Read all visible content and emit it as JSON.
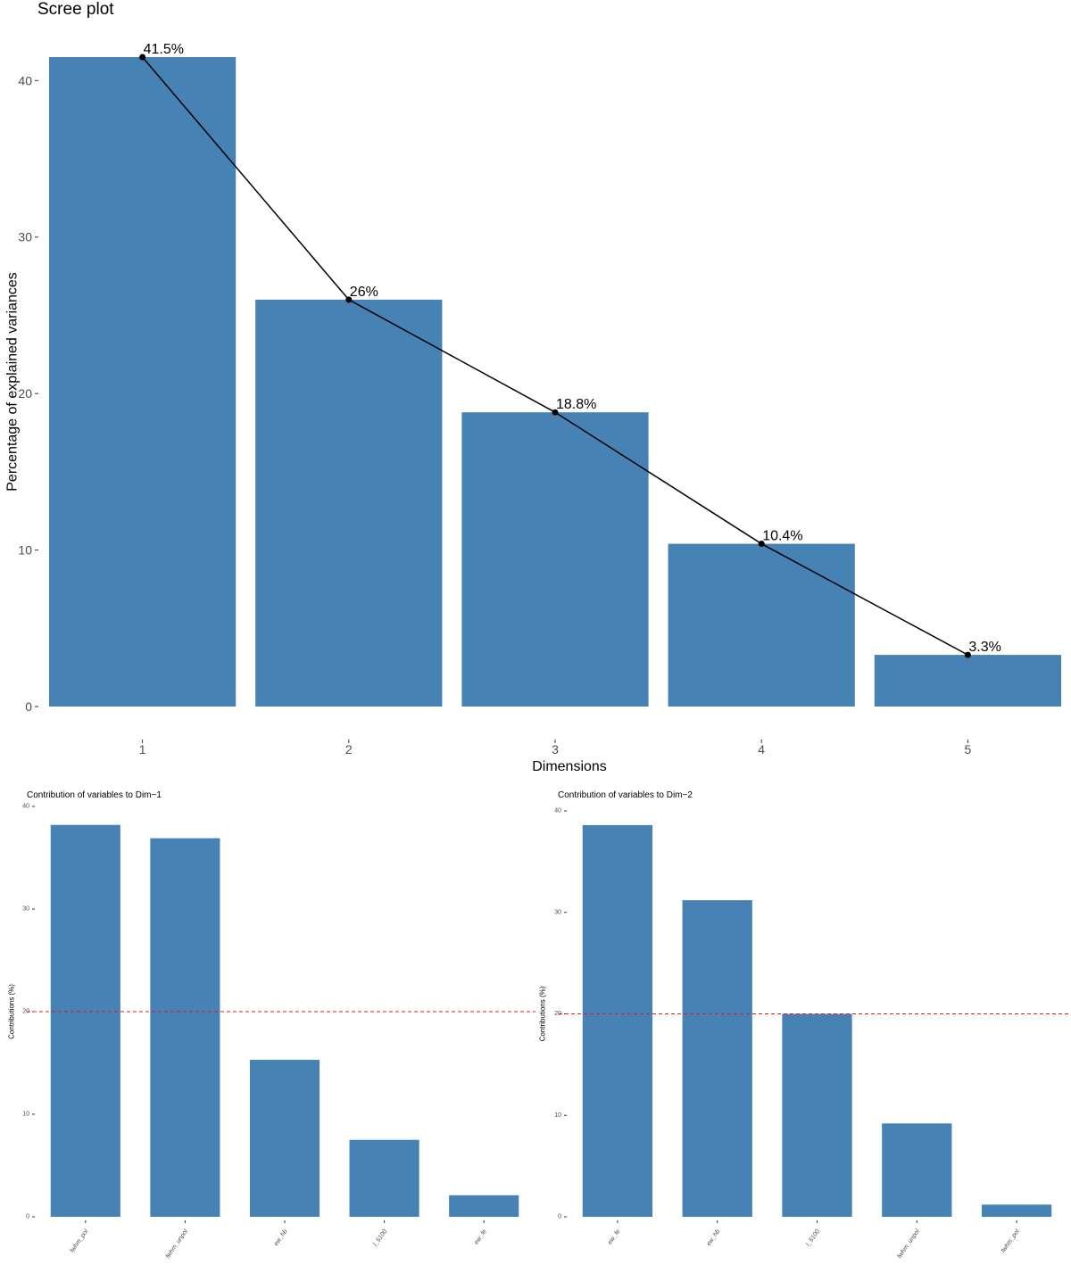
{
  "colors": {
    "bar": "#4682b4",
    "line": "#000000",
    "reference": "#e41a1c",
    "tick": "#4d4d4d",
    "background": "#ffffff"
  },
  "chart_data": [
    {
      "id": "scree",
      "type": "bar",
      "title": "Scree plot",
      "xlabel": "Dimensions",
      "ylabel": "Percentage of explained variances",
      "categories": [
        "1",
        "2",
        "3",
        "4",
        "5"
      ],
      "values": [
        41.5,
        26.0,
        18.8,
        10.4,
        3.3
      ],
      "data_labels": [
        "41.5%",
        "26%",
        "18.8%",
        "10.4%",
        "3.3%"
      ],
      "line_overlay": true,
      "yticks": [
        0,
        10,
        20,
        30,
        40
      ],
      "ylim": [
        0,
        41.5
      ],
      "grid": false
    },
    {
      "id": "dim1",
      "type": "bar",
      "title": "Contribution of variables to Dim−1",
      "xlabel": "",
      "ylabel": "Contributions (%)",
      "categories": [
        "fwhm_pol",
        "fwhm_unpol",
        "ew_hb",
        "l_5100",
        "ew_fe"
      ],
      "values": [
        38.2,
        36.9,
        15.3,
        7.5,
        2.1
      ],
      "reference_line": 20,
      "yticks": [
        0,
        10,
        20,
        30,
        40
      ],
      "ylim": [
        0,
        40
      ],
      "grid": false
    },
    {
      "id": "dim2",
      "type": "bar",
      "title": "Contribution of variables to Dim−2",
      "xlabel": "",
      "ylabel": "Contributions (%)",
      "categories": [
        "ew_fe",
        "ew_hb",
        "l_5100",
        "fwhm_unpol",
        "fwhm_pol"
      ],
      "values": [
        38.6,
        31.2,
        20.0,
        9.2,
        1.2
      ],
      "reference_line": 20,
      "yticks": [
        0,
        10,
        20,
        30,
        40
      ],
      "ylim": [
        0,
        40
      ],
      "grid": false
    }
  ]
}
